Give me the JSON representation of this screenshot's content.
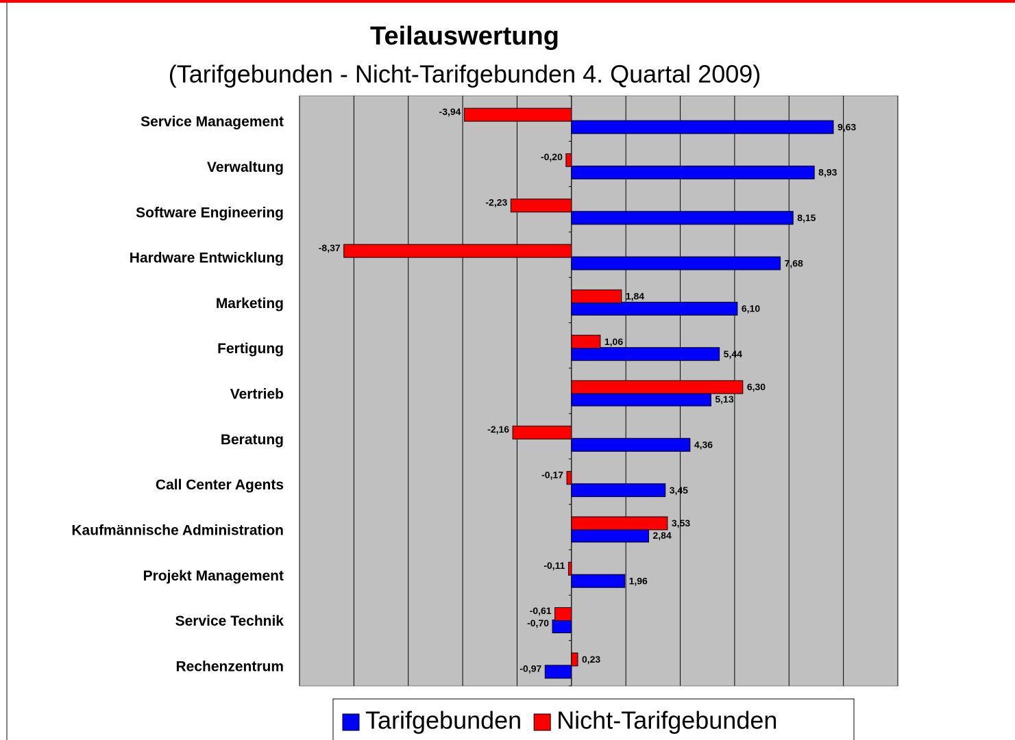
{
  "chart_data": {
    "type": "hbar",
    "title": "Teilauswertung",
    "subtitle": "(Tarifgebunden - Nicht-Tarifgebunden 4. Quartal 2009)",
    "categories": [
      "Service Management",
      "Verwaltung",
      "Software Engineering",
      "Hardware Entwicklung",
      "Marketing",
      "Fertigung",
      "Vertrieb",
      "Beratung",
      "Call Center Agents",
      "Kaufmännische Administration",
      "Projekt Management",
      "Service Technik",
      "Rechenzentrum"
    ],
    "series": [
      {
        "name": "Tarifgebunden",
        "color": "#0000ff",
        "values": [
          9.63,
          8.93,
          8.15,
          7.68,
          6.1,
          5.44,
          5.13,
          4.36,
          3.45,
          2.84,
          1.96,
          -0.7,
          -0.97
        ],
        "value_labels": [
          "9,63",
          "8,93",
          "8,15",
          "7,68",
          "6,10",
          "5,44",
          "5,13",
          "4,36",
          "3,45",
          "2,84",
          "1,96",
          "-0,70",
          "-0,97"
        ]
      },
      {
        "name": "Nicht-Tarifgebunden",
        "color": "#ff0000",
        "values": [
          -3.94,
          -0.2,
          -2.23,
          -8.37,
          1.84,
          1.06,
          6.3,
          -2.16,
          -0.17,
          3.53,
          -0.11,
          -0.61,
          0.23
        ],
        "value_labels": [
          "-3,94",
          "-0,20",
          "-2,23",
          "-8,37",
          "1,84",
          "1,06",
          "6,30",
          "-2,16",
          "-0,17",
          "3,53",
          "-0,11",
          "-0,61",
          "0,23"
        ]
      }
    ],
    "xlim": [
      -10,
      12
    ],
    "xticks": [
      -10,
      -8,
      -6,
      -4,
      -2,
      0,
      2,
      4,
      6,
      8,
      10,
      12
    ],
    "grid": true,
    "legend": "bottom",
    "plot_background": "#c0c0c0"
  }
}
